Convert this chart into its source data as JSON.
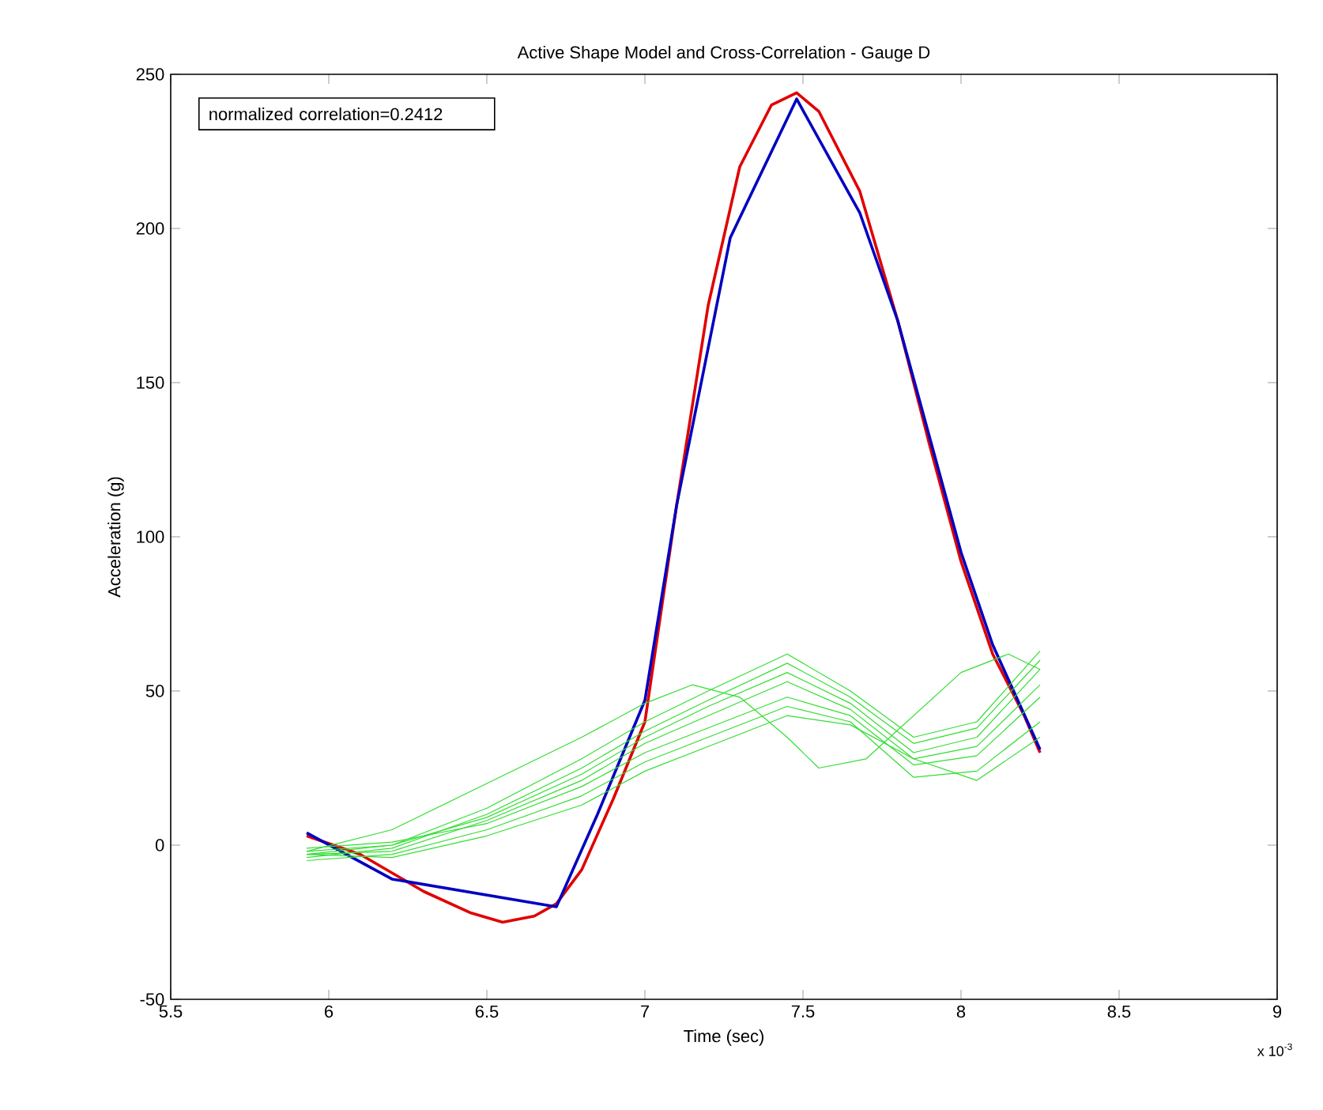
{
  "chart_data": {
    "type": "line",
    "title": "Active Shape Model and Cross-Correlation - Gauge D",
    "xlabel": "Time (sec)",
    "ylabel": "Acceleration (g)",
    "annotations": [
      "normalized correlation=0.2412",
      "x 10$^{-3}$"
    ],
    "xlim": [
      5.5,
      9
    ],
    "xticks": [
      5.5,
      6,
      6.5,
      7,
      7.5,
      8,
      8.5,
      9
    ],
    "ylim": [
      -50,
      250
    ],
    "yticks": [
      -50,
      0,
      50,
      100,
      150,
      200,
      250
    ],
    "grid": false,
    "line_style": "solid",
    "marker": "none",
    "series": [
      {
        "color": "#e00000",
        "x": [
          5.93,
          6.1,
          6.3,
          6.45,
          6.55,
          6.65,
          6.72,
          6.8,
          6.9,
          7.0,
          7.1,
          7.2,
          7.3,
          7.4,
          7.48,
          7.55,
          7.68,
          7.8,
          7.9,
          8.0,
          8.1,
          8.2,
          8.25
        ],
        "values": [
          3,
          -3,
          -15,
          -22,
          -25,
          -23,
          -19,
          -8,
          15,
          40,
          110,
          175,
          220,
          240,
          244,
          238,
          212,
          170,
          130,
          92,
          62,
          42,
          30
        ]
      },
      {
        "color": "#0000c0",
        "x": [
          5.93,
          6.2,
          6.72,
          6.85,
          7.0,
          7.1,
          7.27,
          7.48,
          7.68,
          7.8,
          8.0,
          8.1,
          8.25
        ],
        "values": [
          4,
          -11,
          -20,
          10,
          47,
          110,
          197,
          242,
          205,
          170,
          95,
          65,
          31
        ]
      },
      {
        "color": "#33dd33",
        "x": [
          5.93,
          6.2,
          6.5,
          6.8,
          7.0,
          7.15,
          7.3,
          7.45,
          7.55,
          7.7,
          7.85,
          8.0,
          8.15,
          8.25
        ],
        "values": [
          -2,
          5,
          20,
          35,
          46,
          52,
          48,
          35,
          25,
          28,
          42,
          56,
          62,
          57
        ]
      },
      {
        "color": "#33dd33",
        "x": [
          5.93,
          6.2,
          6.5,
          6.8,
          7.0,
          7.2,
          7.45,
          7.65,
          7.85,
          8.05,
          8.25
        ],
        "values": [
          -3,
          0,
          12,
          28,
          40,
          50,
          62,
          50,
          35,
          40,
          63
        ]
      },
      {
        "color": "#33dd33",
        "x": [
          5.93,
          6.2,
          6.5,
          6.8,
          7.0,
          7.2,
          7.45,
          7.65,
          7.85,
          8.05,
          8.25
        ],
        "values": [
          -4,
          -1,
          10,
          25,
          37,
          47,
          59,
          48,
          33,
          38,
          60
        ]
      },
      {
        "color": "#33dd33",
        "x": [
          5.93,
          6.2,
          6.5,
          6.8,
          7.0,
          7.2,
          7.45,
          7.65,
          7.85,
          8.05,
          8.25
        ],
        "values": [
          -2,
          0,
          9,
          23,
          35,
          45,
          56,
          46,
          30,
          35,
          57
        ]
      },
      {
        "color": "#33dd33",
        "x": [
          5.93,
          6.2,
          6.5,
          6.8,
          7.0,
          7.2,
          7.45,
          7.65,
          7.85,
          8.05,
          8.25
        ],
        "values": [
          -3,
          -2,
          8,
          21,
          33,
          42,
          53,
          44,
          28,
          32,
          52
        ]
      },
      {
        "color": "#33dd33",
        "x": [
          5.93,
          6.2,
          6.5,
          6.8,
          7.0,
          7.2,
          7.45,
          7.65,
          7.85,
          8.05,
          8.25
        ],
        "values": [
          -1,
          1,
          7,
          19,
          30,
          38,
          48,
          42,
          26,
          29,
          48
        ]
      },
      {
        "color": "#33dd33",
        "x": [
          5.93,
          6.2,
          6.5,
          6.8,
          7.0,
          7.2,
          7.45,
          7.65,
          7.85,
          8.05,
          8.25
        ],
        "values": [
          -5,
          -3,
          5,
          16,
          27,
          35,
          45,
          40,
          22,
          24,
          40
        ]
      },
      {
        "color": "#33dd33",
        "x": [
          5.93,
          6.2,
          6.5,
          6.8,
          7.0,
          7.2,
          7.45,
          7.65,
          7.85,
          8.05,
          8.25
        ],
        "values": [
          -3,
          -4,
          3,
          13,
          24,
          32,
          42,
          39,
          28,
          21,
          35
        ]
      }
    ]
  }
}
